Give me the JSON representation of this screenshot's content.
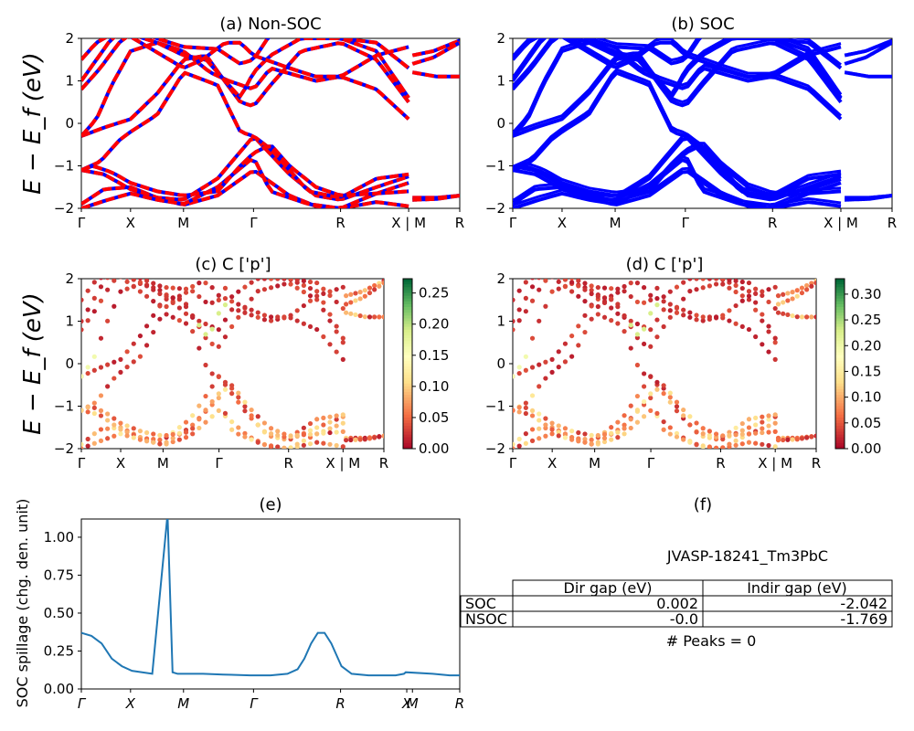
{
  "figure": {
    "panels": {
      "a": {
        "title": "(a) Non-SOC"
      },
      "b": {
        "title": "(b) SOC"
      },
      "c": {
        "title": "(c)  C ['p']"
      },
      "d": {
        "title": "(d) C ['p']"
      },
      "e": {
        "title": "(e)"
      },
      "f": {
        "title": "(f)"
      }
    },
    "ylabel_band": "E − E_f (eV)",
    "kpath_labels": [
      "Γ",
      "X",
      "M",
      "Γ",
      "R",
      "X | M",
      "R"
    ],
    "kpath_labels_e": [
      "Γ",
      "X",
      "M",
      "Γ",
      "R",
      "X",
      "M",
      "R"
    ],
    "band_yticks": [
      "2",
      "1",
      "0",
      "−1",
      "−2"
    ],
    "colorbar_c_ticks": [
      "0.25",
      "0.20",
      "0.15",
      "0.10",
      "0.05",
      "0.00"
    ],
    "colorbar_d_ticks": [
      "0.30",
      "0.25",
      "0.20",
      "0.15",
      "0.10",
      "0.05",
      "0.00"
    ],
    "spillage_yticks": [
      "1.00",
      "0.75",
      "0.50",
      "0.25",
      "0.00"
    ],
    "ylabel_spillage": "SOC spillage (chg. den. unit)"
  },
  "table": {
    "material": "JVASP-18241_Tm3PbC",
    "columns": [
      "Dir gap (eV)",
      "Indir gap (eV)"
    ],
    "rows": [
      {
        "label": "SOC",
        "dir_gap": "0.002",
        "indir_gap": "-2.042"
      },
      {
        "label": "NSOC",
        "dir_gap": "-0.0",
        "indir_gap": "-1.769"
      }
    ],
    "peaks": "# Peaks = 0"
  },
  "colors": {
    "nonsoc_line": "#ff0000",
    "soc_line": "#0000ff",
    "spillage_line": "#1f77b4"
  },
  "chart_data": [
    {
      "type": "line",
      "title": "(a) Non-SOC",
      "ylabel": "E − E_f (eV)",
      "ylim": [
        -2,
        2
      ],
      "x_ticks": [
        "Γ",
        "X",
        "M",
        "Γ",
        "R",
        "X | M",
        "R"
      ],
      "segments": [
        "Γ-X",
        "X-M",
        "M-Γ",
        "Γ-R",
        "R-X",
        "M-R"
      ],
      "band_energies_at_high_symmetry_points": {
        "note_bands": "approximate energies (eV) of bands crossing the window at Γ, X, M, Γ, R, X, M, R",
        "Γ": [
          -1.9,
          -1.1,
          -0.3,
          0.8,
          1.5
        ],
        "X": [
          -1.8,
          -1.5,
          0.1,
          1.7
        ],
        "M": [
          -1.9,
          -1.8,
          1.5,
          1.7
        ],
        "R": [
          -2.0,
          -1.8,
          1.1,
          1.9
        ]
      }
    },
    {
      "type": "line",
      "title": "(b) SOC",
      "ylim": [
        -2,
        2
      ],
      "x_ticks": [
        "Γ",
        "X",
        "M",
        "Γ",
        "R",
        "X | M",
        "R"
      ]
    },
    {
      "type": "scatter",
      "title": "(c)  C ['p']",
      "ylim": [
        -2,
        2
      ],
      "colorbar_range": [
        0,
        0.27
      ],
      "x_ticks": [
        "Γ",
        "X",
        "M",
        "Γ",
        "R",
        "X | M",
        "R"
      ]
    },
    {
      "type": "scatter",
      "title": "(d) C ['p']",
      "ylim": [
        -2,
        2
      ],
      "colorbar_range": [
        0,
        0.33
      ],
      "x_ticks": [
        "Γ",
        "X",
        "M",
        "Γ",
        "R",
        "X | M",
        "R"
      ]
    },
    {
      "type": "line",
      "title": "(e)",
      "ylabel": "SOC spillage (chg. den. unit)",
      "ylim": [
        0,
        1.12
      ],
      "x_ticks": [
        "Γ",
        "X",
        "M",
        "Γ",
        "R",
        "X",
        "M",
        "R"
      ],
      "x": [
        0,
        0.03,
        0.06,
        0.09,
        0.12,
        0.15,
        0.18,
        0.21,
        0.255,
        0.27,
        0.285,
        0.32,
        0.36,
        0.42,
        0.5,
        0.56,
        0.61,
        0.64,
        0.66,
        0.68,
        0.7,
        0.72,
        0.74,
        0.77,
        0.8,
        0.85,
        0.9,
        0.93,
        0.955,
        0.96,
        1.04,
        1.09,
        1.12
      ],
      "values": [
        0.37,
        0.35,
        0.3,
        0.2,
        0.15,
        0.12,
        0.11,
        0.1,
        1.15,
        0.11,
        0.1,
        0.1,
        0.1,
        0.095,
        0.09,
        0.09,
        0.1,
        0.13,
        0.2,
        0.3,
        0.37,
        0.37,
        0.3,
        0.15,
        0.1,
        0.09,
        0.09,
        0.09,
        0.1,
        0.11,
        0.1,
        0.09,
        0.09
      ]
    },
    {
      "type": "table",
      "title": "(f)"
    }
  ]
}
